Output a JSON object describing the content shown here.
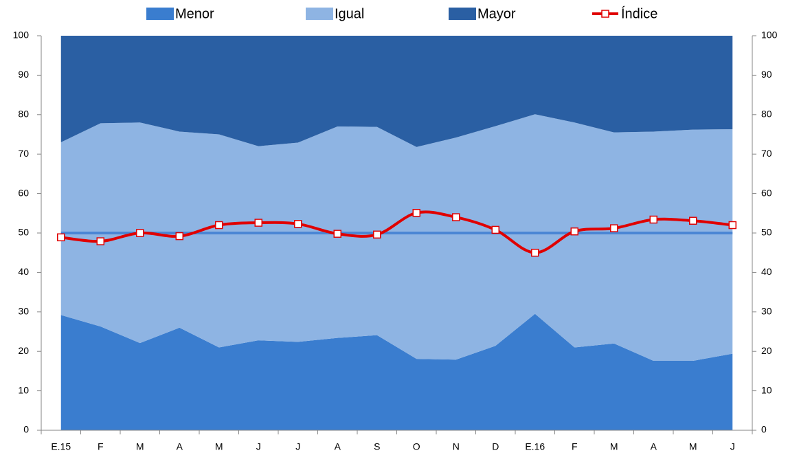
{
  "chart_data": {
    "type": "stacked-area-line",
    "categories": [
      "E.15",
      "F",
      "M",
      "A",
      "M",
      "J",
      "J",
      "A",
      "S",
      "O",
      "N",
      "D",
      "E.16",
      "F",
      "M",
      "A",
      "M",
      "J"
    ],
    "series": [
      {
        "name": "Menor",
        "color": "#3a7dcf",
        "values": [
          29.2,
          26.3,
          22.1,
          26,
          21,
          22.8,
          22.4,
          23.4,
          24.1,
          18.1,
          17.9,
          21.4,
          29.5,
          21,
          22,
          17.6,
          17.6,
          19.4
        ]
      },
      {
        "name": "Igual",
        "color": "#8eb4e3",
        "values": [
          43.8,
          51.5,
          55.9,
          49.7,
          54,
          49.2,
          50.5,
          53.6,
          52.8,
          53.7,
          56.3,
          55.7,
          50.6,
          57,
          53.5,
          58.1,
          58.6,
          56.9
        ]
      },
      {
        "name": "Mayor",
        "color": "#2a5fa3",
        "values": [
          27,
          22.2,
          22,
          24.3,
          25,
          28,
          27.1,
          23,
          23.1,
          28.2,
          25.8,
          22.9,
          19.9,
          22,
          24.5,
          24.3,
          23.8,
          23.7
        ]
      },
      {
        "name": "Índice",
        "color": "#e00000",
        "axis": "y2",
        "values": [
          48.9,
          47.9,
          50,
          49.2,
          52,
          52.6,
          52.3,
          49.8,
          49.6,
          55.1,
          54,
          50.8,
          45,
          50.4,
          51.2,
          53.4,
          53.1,
          52
        ]
      }
    ],
    "reference_line": {
      "value": 50,
      "color": "#4a86d4"
    },
    "ylim": [
      0,
      100
    ],
    "yticks": [
      0,
      10,
      20,
      30,
      40,
      50,
      60,
      70,
      80,
      90,
      100
    ],
    "y2lim": [
      0,
      100
    ],
    "y2ticks": [
      0,
      10,
      20,
      30,
      40,
      50,
      60,
      70,
      80,
      90,
      100
    ],
    "legend": "top"
  }
}
